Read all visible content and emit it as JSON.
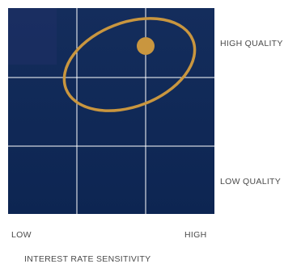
{
  "quality_labels": {
    "high": "HIGH QUALITY",
    "low": "LOW QUALITY"
  },
  "sensitivity_labels": {
    "low": "LOW",
    "high": "HIGH"
  },
  "x_axis_title": "INTEREST RATE SENSITIVITY",
  "colors": {
    "grid_fill": "#102a55",
    "grid_fill_top_left": "#1b2d62",
    "grid_lines": "#ffffff",
    "accent": "#c9963f",
    "label_text": "#4a4a4a"
  },
  "highlight": {
    "column": 3,
    "row": 1,
    "description_icon": "gold-dot-marker"
  }
}
